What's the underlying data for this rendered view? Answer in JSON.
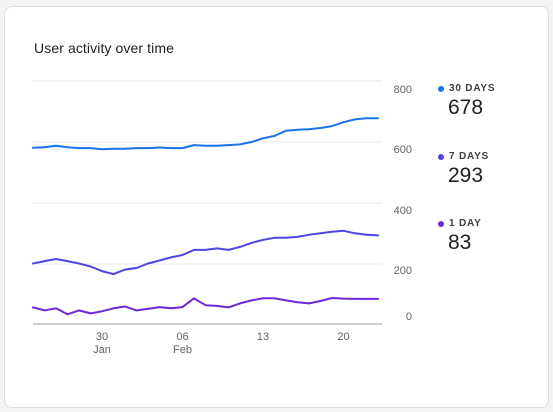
{
  "card": {
    "title": "User activity over time"
  },
  "legend": [
    {
      "label": "30 DAYS",
      "value": "678",
      "color": "#1a73e8"
    },
    {
      "label": "7 DAYS",
      "value": "293",
      "color": "#4f46e5"
    },
    {
      "label": "1 DAY",
      "value": "83",
      "color": "#6d28d9"
    }
  ],
  "chart_data": {
    "type": "line",
    "title": "User activity over time",
    "xlabel": "",
    "ylabel": "",
    "grid": true,
    "legend_position": "right",
    "x_ticks": [
      {
        "label": "30",
        "sublabel": "Jan",
        "day": 30
      },
      {
        "label": "06",
        "sublabel": "Feb",
        "day": 37
      },
      {
        "label": "13",
        "sublabel": "",
        "day": 44
      },
      {
        "label": "20",
        "sublabel": "",
        "day": 51
      }
    ],
    "x_range": [
      24,
      54
    ],
    "panels": [
      {
        "ylim": [
          400,
          800
        ],
        "y_ticks": [
          "800",
          "600",
          "400"
        ],
        "series": [
          {
            "name": "30 DAYS",
            "color": "#1a73e8",
            "x": [
              24,
              25,
              26,
              27,
              28,
              29,
              30,
              31,
              32,
              33,
              34,
              35,
              36,
              37,
              38,
              39,
              40,
              41,
              42,
              43,
              44,
              45,
              46,
              47,
              48,
              49,
              50,
              51,
              52,
              53,
              54
            ],
            "values": [
              581,
              583,
              588,
              583,
              580,
              580,
              576,
              578,
              578,
              580,
              580,
              582,
              580,
              580,
              590,
              588,
              588,
              590,
              592,
              600,
              612,
              620,
              637,
              640,
              642,
              646,
              652,
              665,
              674,
              678,
              678
            ]
          }
        ]
      },
      {
        "ylim": [
          0,
          400
        ],
        "y_ticks": [
          "400",
          "200",
          "0"
        ],
        "series": [
          {
            "name": "7 DAYS",
            "color": "#4f46e5",
            "x": [
              24,
              25,
              26,
              27,
              28,
              29,
              30,
              31,
              32,
              33,
              34,
              35,
              36,
              37,
              38,
              39,
              40,
              41,
              42,
              43,
              44,
              45,
              46,
              47,
              48,
              49,
              50,
              51,
              52,
              53,
              54
            ],
            "values": [
              200,
              208,
              215,
              208,
              200,
              190,
              175,
              165,
              180,
              185,
              200,
              210,
              220,
              228,
              245,
              245,
              250,
              245,
              255,
              268,
              278,
              285,
              285,
              288,
              295,
              300,
              305,
              308,
              300,
              295,
              293
            ],
            "label": "7 DAYS"
          },
          {
            "name": "1 DAY",
            "color": "#6d28d9",
            "x": [
              24,
              25,
              26,
              27,
              28,
              29,
              30,
              31,
              32,
              33,
              34,
              35,
              36,
              37,
              38,
              39,
              40,
              41,
              42,
              43,
              44,
              45,
              46,
              47,
              48,
              49,
              50,
              51,
              52,
              53,
              54
            ],
            "values": [
              55,
              45,
              52,
              32,
              45,
              35,
              42,
              52,
              58,
              45,
              50,
              56,
              52,
              56,
              85,
              62,
              60,
              55,
              68,
              78,
              85,
              85,
              78,
              72,
              68,
              76,
              86,
              84,
              83,
              83,
              83
            ]
          }
        ]
      }
    ]
  }
}
